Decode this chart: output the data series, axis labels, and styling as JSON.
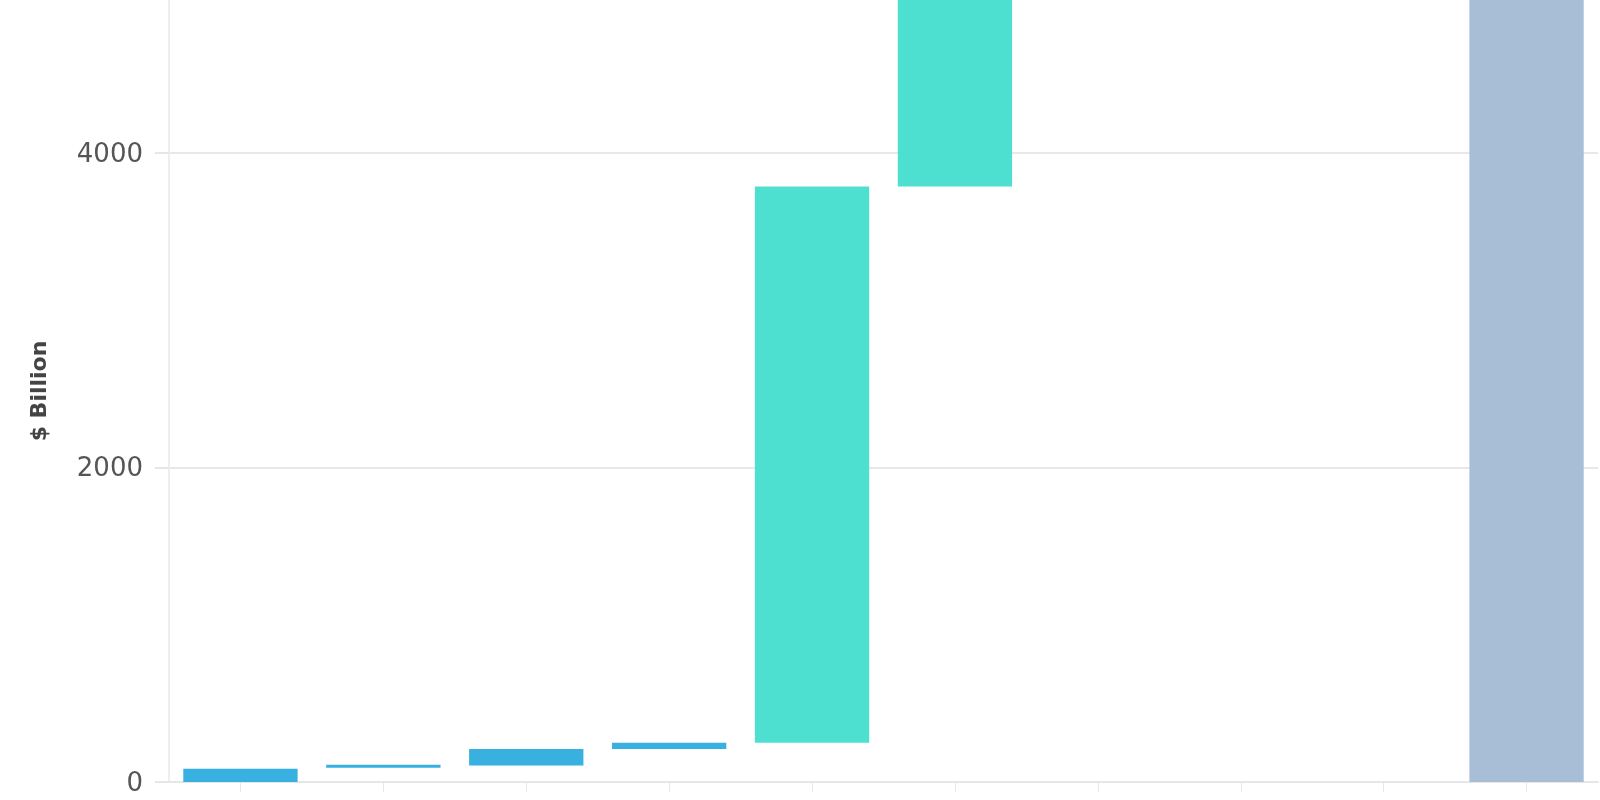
{
  "chart_data": {
    "type": "bar",
    "ylabel": "$ Billion",
    "categories": [
      null,
      null,
      null,
      null,
      null,
      null,
      null,
      null,
      null,
      null
    ],
    "values": [
      85,
      20,
      105,
      40,
      3535,
      1185,
      null,
      null,
      null,
      4970
    ],
    "base": [
      0,
      90,
      105,
      210,
      250,
      3785,
      null,
      null,
      null,
      0
    ],
    "colors": [
      "#38b0e0",
      "#38b0e0",
      "#38b0e0",
      "#38b0e0",
      "#4ddfd0",
      "#4ddfd0",
      null,
      null,
      null,
      "#a7bed6"
    ],
    "ylim": [
      0,
      4970
    ],
    "yticks": [
      0,
      2000,
      4000
    ],
    "grid": "y",
    "tick_labels": "y"
  }
}
